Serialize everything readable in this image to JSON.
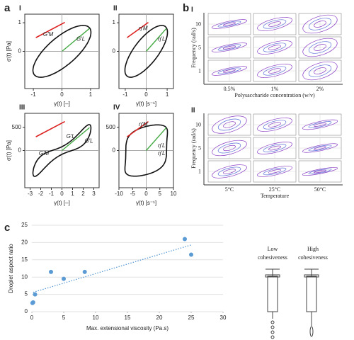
{
  "panel_labels": [
    "a",
    "b",
    "c"
  ],
  "chart_data": [
    {
      "type": "lissajous",
      "panel": "I",
      "xlabel": "γ(t) [–]",
      "ylabel": "σ(t) [Pa]",
      "xlim": [
        -1.3,
        1.3
      ],
      "ylim": [
        -1.3,
        1.3
      ],
      "xticks": [
        -1,
        0,
        1
      ],
      "yticks": [
        0,
        1
      ],
      "annotations": [
        "G′M",
        "G′L"
      ]
    },
    {
      "type": "lissajous",
      "panel": "II",
      "xlabel": "γ̇(t) [s⁻¹]",
      "ylabel": "",
      "xlim": [
        -1.3,
        1.3
      ],
      "ylim": [
        -1.3,
        1.3
      ],
      "xticks": [
        -1,
        0,
        1
      ],
      "yticks": [
        0,
        1
      ],
      "annotations": [
        "η′M",
        "η′L"
      ]
    },
    {
      "type": "lissajous",
      "panel": "III",
      "xlabel": "γ(t) [–]",
      "ylabel": "σ(t) [Pa]",
      "xlim": [
        -3.5,
        3.5
      ],
      "ylim": [
        -800,
        800
      ],
      "xticks": [
        -3,
        -2,
        -1,
        0,
        1,
        2,
        3
      ],
      "yticks": [
        0,
        500
      ],
      "annotations": [
        "G′M",
        "G′L",
        "G′L"
      ]
    },
    {
      "type": "lissajous",
      "panel": "IV",
      "xlabel": "γ̇(t) [s⁻¹]",
      "ylabel": "",
      "xlim": [
        -10,
        10
      ],
      "ylim": [
        -800,
        800
      ],
      "xticks": [
        -10,
        -5,
        0,
        5,
        10
      ],
      "yticks": [
        0,
        500
      ],
      "annotations": [
        "η′M",
        "η′L",
        "η′L"
      ]
    },
    {
      "type": "scatter",
      "xlabel": "Max. extensional viscosity (Pa.s)",
      "ylabel": "Droplet aspect ratio",
      "x": [
        0.1,
        0.2,
        0.5,
        3,
        5,
        8.3,
        24,
        25
      ],
      "values": [
        2.5,
        2.7,
        5,
        11.5,
        9.5,
        11.5,
        21,
        16.5
      ],
      "color": "#5b9bd5",
      "trend": {
        "x": [
          0.2,
          25
        ],
        "values": [
          5.6,
          19.3
        ]
      },
      "xlim": [
        0,
        30
      ],
      "ylim": [
        0,
        25
      ],
      "xticks": [
        0,
        5,
        10,
        15,
        20,
        25,
        30
      ],
      "yticks": [
        0,
        5,
        10,
        15,
        20,
        25
      ]
    }
  ],
  "panel_b": [
    {
      "label": "I",
      "ylabel": "Frequency (rad/s)",
      "row_labels": [
        "10",
        "5",
        "1"
      ],
      "col_labels": [
        "0.5%",
        "1%",
        "2%"
      ],
      "xlabel": "Polysaccharide concentration (w/v)"
    },
    {
      "label": "II",
      "ylabel": "Frequency (rad/s)",
      "row_labels": [
        "10",
        "5",
        "1"
      ],
      "col_labels": [
        "5°C",
        "25°C",
        "50°C"
      ],
      "xlabel": "Temperature"
    }
  ],
  "diagram": {
    "labels": [
      [
        "Low",
        "cohesiveness"
      ],
      [
        "High",
        "cohesiveness"
      ]
    ]
  }
}
